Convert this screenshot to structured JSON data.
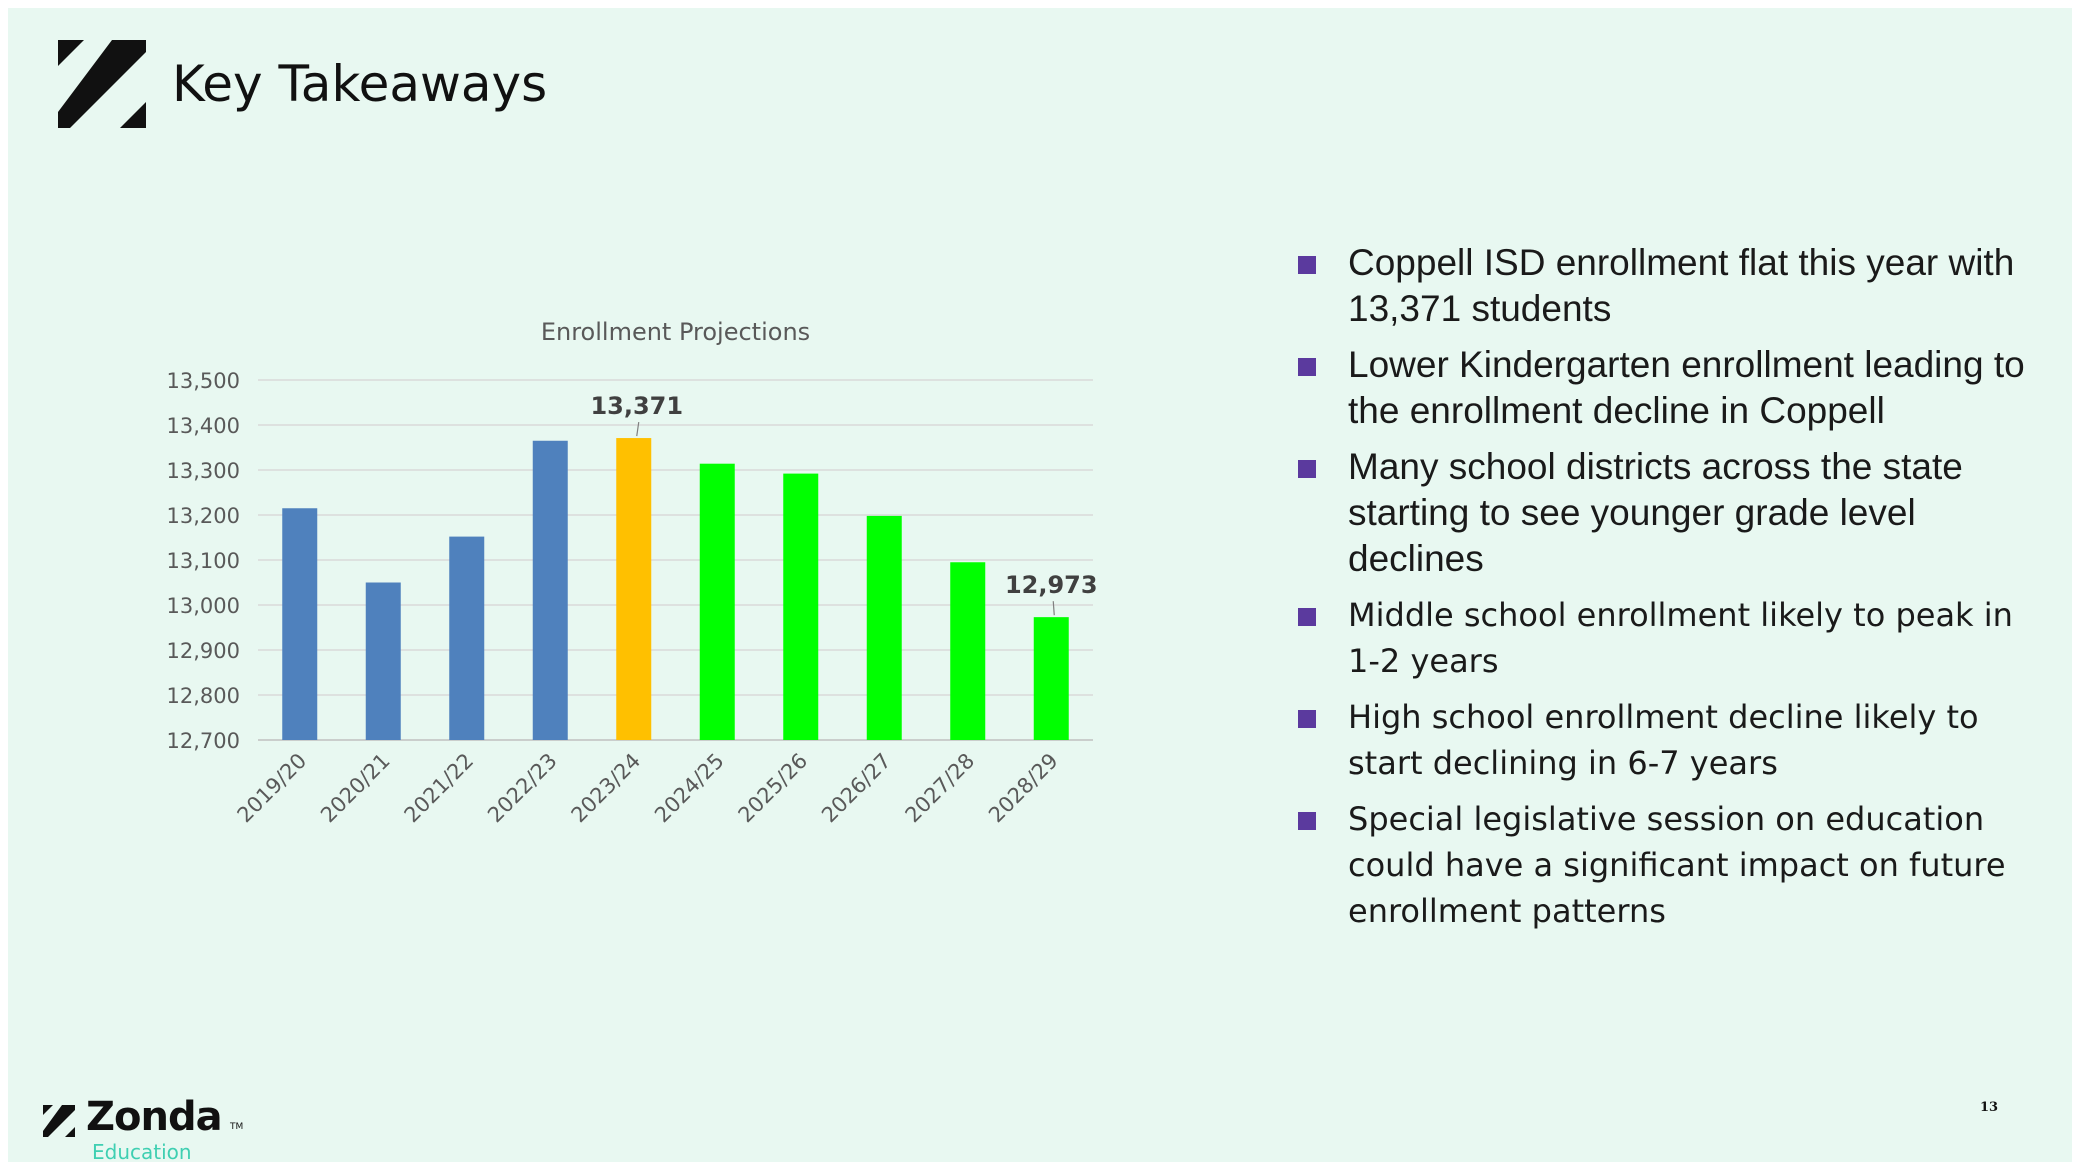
{
  "slide": {
    "title": "Key Takeaways",
    "page_number": "13"
  },
  "brand": {
    "name": "Zonda",
    "trademark": "TM",
    "subtitle": "Education"
  },
  "bullets": [
    {
      "text": "Coppell ISD enrollment flat this year with 13,371 students",
      "style": "arial"
    },
    {
      "text": "Lower Kindergarten enrollment leading to the enrollment decline in Coppell",
      "style": "arial"
    },
    {
      "text": "Many school districts across the state starting to see younger grade level declines",
      "style": "arial"
    },
    {
      "text": "Middle school enrollment likely to peak in 1-2 years",
      "style": "dejavu"
    },
    {
      "text": "High school enrollment decline likely to start declining in 6-7 years",
      "style": "dejavu"
    },
    {
      "text": "Special legislative session on education could have a significant impact on future enrollment patterns",
      "style": "dejavu"
    }
  ],
  "colors": {
    "historical": "#4f81bd",
    "current": "#ffc000",
    "projected": "#00ff00",
    "bullet": "#5b3a9e",
    "background": "#e8f8f1"
  },
  "chart_data": {
    "type": "bar",
    "title": "Enrollment Projections",
    "xlabel": "",
    "ylabel": "",
    "categories": [
      "2019/20",
      "2020/21",
      "2021/22",
      "2022/23",
      "2023/24",
      "2024/25",
      "2025/26",
      "2026/27",
      "2027/28",
      "2028/29"
    ],
    "values": [
      13215,
      13050,
      13152,
      13365,
      13371,
      13314,
      13292,
      13198,
      13095,
      12973
    ],
    "bar_kinds": [
      "historical",
      "historical",
      "historical",
      "historical",
      "current",
      "projected",
      "projected",
      "projected",
      "projected",
      "projected"
    ],
    "ylim": [
      12700,
      13500
    ],
    "yticks": [
      12700,
      12800,
      12900,
      13000,
      13100,
      13200,
      13300,
      13400,
      13500
    ],
    "ytick_labels": [
      "12,700",
      "12,800",
      "12,900",
      "13,000",
      "13,100",
      "13,200",
      "13,300",
      "13,400",
      "13,500"
    ],
    "grid": true,
    "legend": "none",
    "data_labels": [
      {
        "index": 4,
        "text": "13,371"
      },
      {
        "index": 9,
        "text": "12,973"
      }
    ]
  }
}
